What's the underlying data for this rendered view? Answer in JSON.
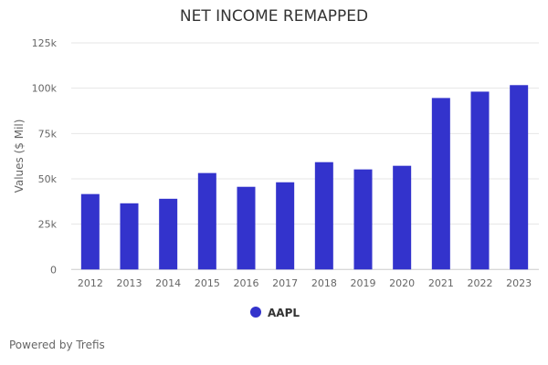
{
  "chart_data": {
    "type": "bar",
    "title": "NET INCOME REMAPPED",
    "xlabel": "",
    "ylabel": "Values ($ Mil)",
    "categories": [
      "2012",
      "2013",
      "2014",
      "2015",
      "2016",
      "2017",
      "2018",
      "2019",
      "2020",
      "2021",
      "2022",
      "2023"
    ],
    "series": [
      {
        "name": "AAPL",
        "color": "#3333cc",
        "values": [
          41.6,
          36.5,
          39.0,
          53.2,
          45.6,
          48.1,
          59.2,
          55.2,
          57.2,
          94.6,
          98.1,
          101.7
        ]
      }
    ],
    "value_unit": "k",
    "ylim": [
      0,
      125
    ],
    "yticks": [
      0,
      25,
      50,
      75,
      100,
      125
    ],
    "ytick_labels": [
      "0",
      "25k",
      "50k",
      "75k",
      "100k",
      "125k"
    ],
    "grid": true,
    "legend_position": "bottom"
  },
  "footer": {
    "credit": "Powered by Trefis"
  }
}
